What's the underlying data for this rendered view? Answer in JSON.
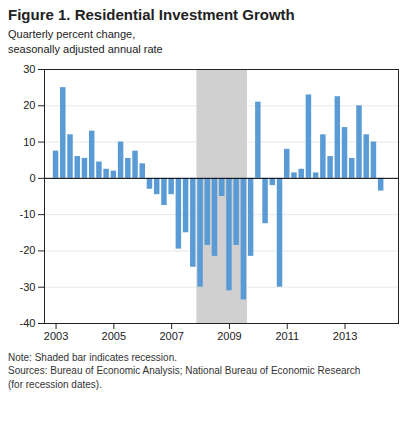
{
  "chart_data": {
    "type": "bar",
    "title": "Figure 1. Residential Investment Growth",
    "subtitle": "Quarterly percent change,\nseasonally adjusted annual rate",
    "note": "Note: Shaded bar indicates recession.\nSources: Bureau of Economic Analysis; National Bureau of Economic Research\n(for recession dates).",
    "color": "#5b9bd5",
    "shading": {
      "start": 2007.875,
      "end": 2009.625,
      "color": "#d0d0d0"
    },
    "x": [
      2003.0,
      2003.25,
      2003.5,
      2003.75,
      2004.0,
      2004.25,
      2004.5,
      2004.75,
      2005.0,
      2005.25,
      2005.5,
      2005.75,
      2006.0,
      2006.25,
      2006.5,
      2006.75,
      2007.0,
      2007.25,
      2007.5,
      2007.75,
      2008.0,
      2008.25,
      2008.5,
      2008.75,
      2009.0,
      2009.25,
      2009.5,
      2009.75,
      2010.0,
      2010.25,
      2010.5,
      2010.75,
      2011.0,
      2011.25,
      2011.5,
      2011.75,
      2012.0,
      2012.25,
      2012.5,
      2012.75,
      2013.0,
      2013.25,
      2013.5,
      2013.75,
      2014.0,
      2014.25
    ],
    "values": [
      7.5,
      25.0,
      12.0,
      6.0,
      5.5,
      13.0,
      4.5,
      2.5,
      2.0,
      10.0,
      5.5,
      7.5,
      4.0,
      -3.0,
      -4.5,
      -7.5,
      -4.5,
      -19.5,
      -15.0,
      -24.5,
      -30.0,
      -18.5,
      -21.5,
      -5.0,
      -31.0,
      -18.5,
      -33.5,
      -21.5,
      21.0,
      -12.5,
      -2.0,
      -30.0,
      8.0,
      1.5,
      2.5,
      23.0,
      1.5,
      12.0,
      6.0,
      22.5,
      14.0,
      5.5,
      20.0,
      12.0,
      10.0,
      -3.5
    ],
    "xlim": [
      2002.6,
      2014.85
    ],
    "xticks": [
      2003,
      2005,
      2007,
      2009,
      2011,
      2013
    ],
    "ylim": [
      -40,
      30
    ],
    "yticks": [
      -40,
      -30,
      -20,
      -10,
      0,
      10,
      20,
      30
    ],
    "grid": true
  }
}
